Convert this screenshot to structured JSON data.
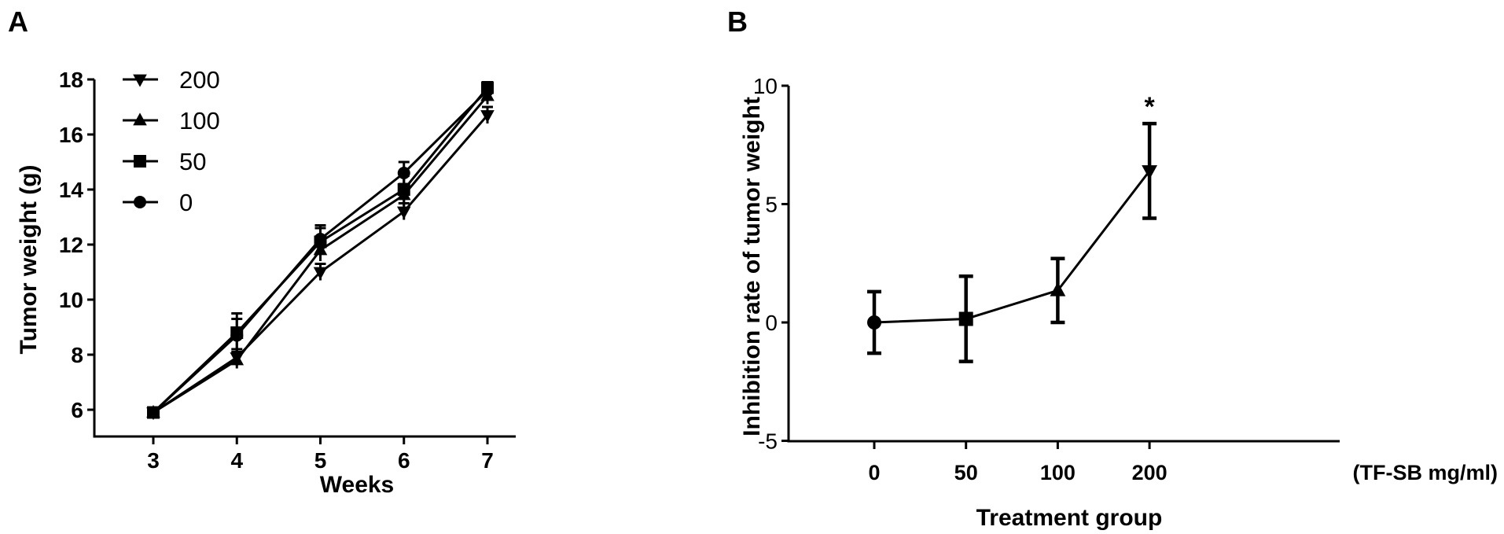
{
  "chart_data": [
    {
      "panel_label": "A",
      "type": "line",
      "title": "",
      "xlabel": "Weeks",
      "ylabel": "Tumor weight (g)",
      "x": [
        3,
        4,
        5,
        6,
        7
      ],
      "xticks": [
        "3",
        "4",
        "5",
        "6",
        "7"
      ],
      "yticks": [
        "6",
        "8",
        "10",
        "12",
        "14",
        "16",
        "18"
      ],
      "ylim": [
        5.2,
        18
      ],
      "legend_position": "top-left",
      "series": [
        {
          "name": "200",
          "marker": "triangle-down",
          "values": [
            5.9,
            7.9,
            11.0,
            13.2,
            16.7
          ],
          "errors": [
            0.1,
            0.3,
            0.3,
            0.3,
            0.3
          ]
        },
        {
          "name": "100",
          "marker": "triangle-up",
          "values": [
            5.9,
            7.8,
            11.8,
            13.8,
            17.4
          ],
          "errors": [
            0.1,
            0.3,
            0.4,
            0.4,
            0.3
          ]
        },
        {
          "name": "50",
          "marker": "square",
          "values": [
            5.9,
            8.8,
            12.1,
            14.0,
            17.7
          ],
          "errors": [
            0.1,
            0.7,
            0.5,
            0.5,
            0.2
          ]
        },
        {
          "name": "0",
          "marker": "circle",
          "values": [
            5.9,
            8.7,
            12.2,
            14.6,
            17.6
          ],
          "errors": [
            0.1,
            0.6,
            0.5,
            0.4,
            0.2
          ]
        }
      ]
    },
    {
      "panel_label": "B",
      "type": "line",
      "title": "",
      "xlabel": "Treatment group",
      "ylabel": "Inhibition rate of tumor weight",
      "x_unit_note": "(TF-SB mg/ml)",
      "categories": [
        "0",
        "50",
        "100",
        "200"
      ],
      "markers": [
        "circle",
        "square",
        "triangle-up",
        "triangle-down"
      ],
      "values": [
        0.0,
        0.15,
        1.35,
        6.4
      ],
      "errors": [
        1.3,
        1.8,
        1.35,
        2.0
      ],
      "significance": [
        "",
        "",
        "",
        "*"
      ],
      "yticks": [
        "-5",
        "0",
        "5",
        "10"
      ],
      "ylim": [
        -5,
        10
      ]
    }
  ]
}
